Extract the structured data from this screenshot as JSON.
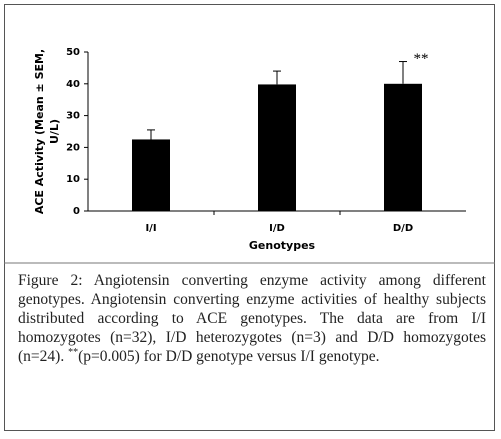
{
  "chart_data": {
    "type": "bar",
    "y_label": [
      "ACE Activity (Mean ± SEM,",
      "U/L)"
    ],
    "x_label": "Genotypes",
    "categories": [
      "I/I",
      "I/D",
      "D/D"
    ],
    "values": [
      22.5,
      39.8,
      40
    ],
    "errors": [
      3,
      4.2,
      7
    ],
    "color": "#000000",
    "ylim": [
      0,
      50
    ],
    "yticks": [
      0,
      10,
      20,
      30,
      40,
      50
    ],
    "grid": false,
    "annotations": [
      {
        "category": 2,
        "text": "**"
      }
    ]
  },
  "caption": {
    "label": "Figure 2:",
    "parts": [
      "Angiotensin converting enzyme activity among different genotypes. Angiotensin converting enzyme activities of healthy subjects distributed according to ACE genotypes. The data are from I/I homozygotes (n=32), I/D heterozygotes (n=3) and D/D homozygotes (n=24). ",
      "**",
      "(p=0.005) for D/D genotype versus I/I genotype."
    ]
  }
}
